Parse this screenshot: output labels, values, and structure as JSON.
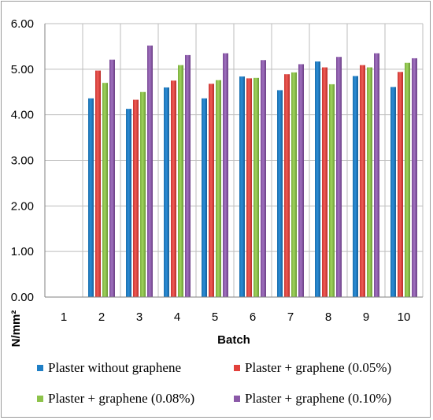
{
  "chart_data": {
    "type": "bar",
    "title": "",
    "xlabel": "Batch",
    "ylabel": "N/mm²",
    "ylim": [
      0,
      6
    ],
    "yticks": [
      "0.00",
      "1.00",
      "2.00",
      "3.00",
      "4.00",
      "5.00",
      "6.00"
    ],
    "grid": "horizontal",
    "legend_position": "bottom",
    "categories": [
      "1",
      "2",
      "3",
      "4",
      "5",
      "6",
      "7",
      "8",
      "9",
      "10"
    ],
    "series": [
      {
        "name": "Plaster without graphene",
        "color": "#1f7fc6",
        "values": [
          null,
          4.36,
          4.13,
          4.6,
          4.36,
          4.84,
          4.54,
          5.17,
          4.85,
          4.61
        ]
      },
      {
        "name": "Plaster + graphene (0.05%)",
        "color": "#e2413c",
        "values": [
          null,
          4.97,
          4.33,
          4.75,
          4.68,
          4.8,
          4.89,
          5.04,
          5.09,
          4.94
        ]
      },
      {
        "name": "Plaster + graphene (0.08%)",
        "color": "#8dc34a",
        "values": [
          null,
          4.7,
          4.5,
          5.09,
          4.76,
          4.81,
          4.93,
          4.67,
          5.04,
          5.14
        ]
      },
      {
        "name": "Plaster + graphene (0.10%)",
        "color": "#8b59a8",
        "values": [
          null,
          5.21,
          5.52,
          5.31,
          5.35,
          5.2,
          5.11,
          5.27,
          5.35,
          5.24
        ]
      }
    ]
  }
}
